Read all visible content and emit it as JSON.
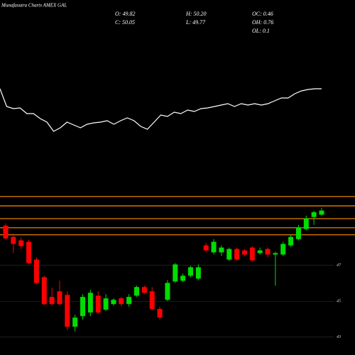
{
  "chart_data": {
    "type": "candlestick",
    "title": "Munafasutra Charts AMEX GAL",
    "info": [
      "O: 49.82",
      "H: 50.20",
      "OC: 0.46",
      "C: 50.05",
      "L: 49.77",
      "OH: 0.76",
      "OL: 0.1"
    ],
    "up_color": "#00dd00",
    "down_color": "#ff0000",
    "level_color": "#ff8c00",
    "ylim": [
      42.4,
      51.1
    ],
    "yticks": [
      43,
      45,
      47
    ],
    "levels": [
      50.83,
      50.31,
      49.6,
      49.09,
      48.7
    ],
    "open": [
      49.21,
      48.58,
      48.39,
      48.31,
      47.32,
      46.34,
      45.24,
      45.55,
      45.35,
      43.58,
      44.17,
      44.37,
      45.31,
      44.53,
      44.84,
      45.16,
      44.84,
      45.31,
      45.79,
      45.55,
      44.57,
      45.08,
      46.1,
      46.14,
      46.42,
      46.26,
      48.11,
      47.72,
      47.72,
      47.32,
      47.91,
      47.83,
      47.99,
      47.68,
      47.91,
      47.6,
      47.6,
      48.11,
      48.46,
      49.02,
      49.69,
      49.82
    ],
    "high": [
      49.33,
      48.78,
      48.54,
      48.43,
      47.44,
      46.42,
      45.75,
      46.14,
      45.55,
      44.25,
      45.39,
      45.63,
      45.55,
      45.39,
      45.16,
      45.24,
      45.39,
      45.87,
      45.87,
      45.79,
      44.69,
      46.18,
      47.13,
      46.54,
      46.97,
      47.05,
      48.23,
      48.46,
      48.11,
      47.99,
      47.99,
      47.91,
      48.07,
      47.99,
      47.99,
      47.76,
      48.31,
      48.7,
      49.25,
      49.76,
      50.04,
      50.2
    ],
    "low": [
      48.43,
      47.68,
      47.91,
      47.05,
      45.94,
      44.76,
      44.76,
      44.76,
      43.39,
      43.31,
      43.98,
      44.17,
      44.29,
      44.45,
      44.76,
      44.72,
      44.69,
      45.24,
      45.39,
      44.49,
      43.98,
      45.0,
      46.02,
      46.06,
      46.34,
      46.18,
      47.72,
      47.6,
      47.52,
      47.24,
      47.24,
      47.52,
      47.2,
      47.6,
      47.44,
      45.87,
      47.52,
      48.03,
      48.39,
      48.94,
      49.25,
      49.77
    ],
    "close": [
      48.5,
      48.19,
      48.07,
      47.13,
      46.02,
      44.84,
      44.84,
      44.84,
      43.58,
      44.09,
      45.24,
      45.47,
      44.37,
      45.16,
      45.08,
      44.84,
      45.24,
      45.79,
      45.47,
      44.57,
      44.09,
      46.02,
      47.05,
      46.42,
      46.89,
      46.89,
      47.83,
      48.31,
      47.99,
      47.91,
      47.32,
      47.6,
      47.28,
      47.83,
      47.6,
      47.68,
      48.19,
      48.58,
      49.09,
      49.61,
      49.96,
      50.05
    ],
    "indicator": {
      "color": "#ffffff",
      "ylim": [
        0,
        100
      ],
      "values": [
        75,
        50,
        47,
        48,
        40,
        40,
        33,
        28,
        15,
        20,
        28,
        24,
        20,
        25,
        27,
        28,
        30,
        25,
        30,
        34,
        30,
        22,
        18,
        28,
        38,
        36,
        42,
        40,
        45,
        43,
        47,
        48,
        50,
        52,
        54,
        50,
        54,
        52,
        54,
        52,
        54,
        58,
        62,
        62,
        68,
        72,
        74,
        75,
        75
      ]
    }
  }
}
